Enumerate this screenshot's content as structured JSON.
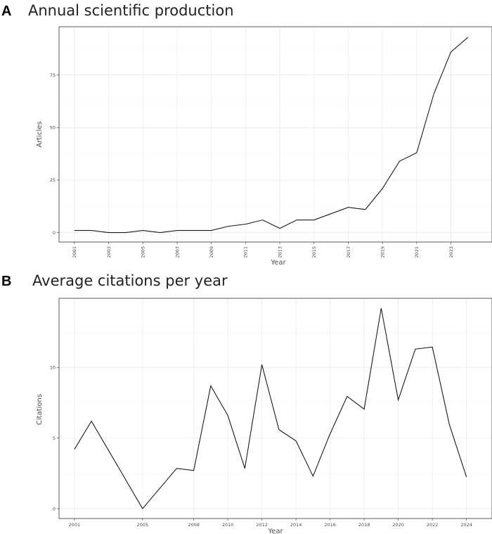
{
  "panels": [
    {
      "letter": "A",
      "title": "Annual scientific production",
      "xlabel": "Year",
      "ylabel": "Articles"
    },
    {
      "letter": "B",
      "title": "Average citations per year",
      "xlabel": "Year",
      "ylabel": "Citations"
    }
  ],
  "chart_data": [
    {
      "type": "line",
      "title": "Annual scientific production",
      "xlabel": "Year",
      "ylabel": "Articles",
      "xlim": [
        2000.1,
        2025.4
      ],
      "ylim": [
        -4.5,
        98
      ],
      "x_ticks": [
        2001,
        2003,
        2005,
        2007,
        2009,
        2011,
        2013,
        2015,
        2017,
        2019,
        2021,
        2023
      ],
      "y_ticks": [
        0,
        25,
        50,
        75
      ],
      "grid": true,
      "x": [
        2001,
        2002,
        2003,
        2004,
        2005,
        2006,
        2007,
        2008,
        2009,
        2010,
        2011,
        2012,
        2013,
        2014,
        2015,
        2016,
        2017,
        2018,
        2019,
        2020,
        2021,
        2022,
        2023,
        2024
      ],
      "values": [
        1,
        1,
        0,
        0,
        1,
        0,
        1,
        1,
        1,
        3,
        4,
        6,
        2,
        6,
        6,
        9,
        12,
        11,
        21,
        34,
        38,
        66,
        86,
        93
      ]
    },
    {
      "type": "line",
      "title": "Average citations per year",
      "xlabel": "Year",
      "ylabel": "Citations",
      "xlim": [
        2000.1,
        2025.5
      ],
      "ylim": [
        -0.7,
        14.9
      ],
      "x_ticks": [
        2001,
        2005,
        2008,
        2010,
        2012,
        2014,
        2016,
        2018,
        2020,
        2022,
        2024
      ],
      "y_ticks": [
        0,
        5,
        10
      ],
      "grid": true,
      "x": [
        2001,
        2002,
        2005,
        2007,
        2008,
        2009,
        2010,
        2011,
        2012,
        2013,
        2014,
        2015,
        2016,
        2017,
        2018,
        2019,
        2020,
        2021,
        2022,
        2023,
        2024
      ],
      "values": [
        4.2,
        6.2,
        0.0,
        2.85,
        2.7,
        8.7,
        6.6,
        2.85,
        10.2,
        5.6,
        4.8,
        2.3,
        5.3,
        7.95,
        7.05,
        14.2,
        7.7,
        11.3,
        11.45,
        5.95,
        2.25
      ]
    }
  ]
}
